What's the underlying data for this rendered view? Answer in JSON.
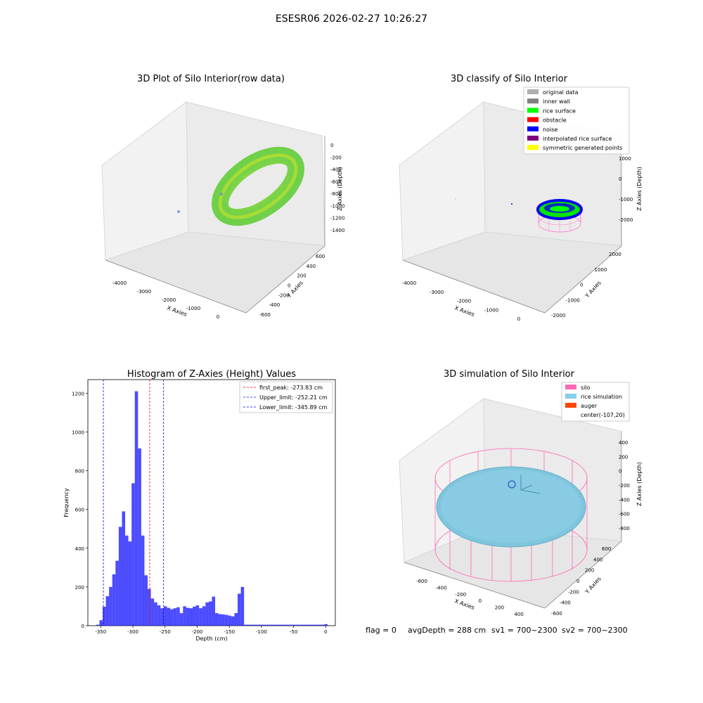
{
  "figure": {
    "suptitle": "ESESR06 2026-02-27 10:26:27",
    "status": {
      "flag": "flag = 0",
      "avg_depth": "avgDepth = 288 cm",
      "sv1": "sv1 = 700~2300",
      "sv2": "sv2 = 700~2300"
    }
  },
  "panels": {
    "p1": {
      "title": "3D Plot of Silo Interior(row data)",
      "xlabel": "X Axies",
      "ylabel": "Y Axies",
      "zlabel": "Z Axies (Depth)",
      "xticks": [
        "-4000",
        "-3000",
        "-2000",
        "-1000",
        "0"
      ],
      "yticks": [
        "-600",
        "-400",
        "-200",
        "0",
        "200",
        "400",
        "600"
      ],
      "zticks": [
        "0",
        "-200",
        "-400",
        "-600",
        "-800",
        "-1000",
        "-1200",
        "-1400"
      ]
    },
    "p2": {
      "title": "3D classify of Silo Interior",
      "xlabel": "X Axies",
      "ylabel": "Y Axies",
      "zlabel": "Z Axies (Depth)",
      "xticks": [
        "-4000",
        "-3000",
        "-2000",
        "-1000",
        "0"
      ],
      "yticks": [
        "-2000",
        "-1000",
        "0",
        "1000",
        "2000"
      ],
      "zticks": [
        "1000",
        "0",
        "-1000",
        "-2000"
      ],
      "legend": [
        {
          "label": "original data",
          "color": "#b0b0b0"
        },
        {
          "label": "inner wall",
          "color": "#808080"
        },
        {
          "label": "rice surface",
          "color": "#00ff00"
        },
        {
          "label": "obstacle",
          "color": "#ff0000"
        },
        {
          "label": "noise",
          "color": "#0000ff"
        },
        {
          "label": "interpolated rice surface",
          "color": "#800080"
        },
        {
          "label": "symmetric generated points",
          "color": "#ffff00"
        }
      ]
    },
    "p3": {
      "title": "Histogram of Z-Axies (Height) Values",
      "legend": [
        {
          "label": "first_peak: -273.83 cm",
          "color": "#ff0000"
        },
        {
          "label": "Upper_limit: -252.21 cm",
          "color": "#0000ff"
        },
        {
          "label": "Lower_limit: -345.89 cm",
          "color": "#0000ff"
        }
      ]
    },
    "p4": {
      "title": "3D simulation of Silo Interior",
      "xlabel": "X Axies",
      "ylabel": "Y Axies",
      "zlabel": "Z Axies (Depth)",
      "xticks": [
        "-600",
        "-400",
        "-200",
        "0",
        "200",
        "400"
      ],
      "yticks": [
        "-600",
        "-400",
        "-200",
        "0",
        "200",
        "400",
        "600"
      ],
      "zticks": [
        "400",
        "200",
        "0",
        "-200",
        "-400",
        "-600",
        "-800"
      ],
      "legend": [
        {
          "label": "silo",
          "color": "#ff69b4"
        },
        {
          "label": "rice simulation",
          "color": "#87ceeb"
        },
        {
          "label": "auger",
          "color": "#ff4500"
        },
        {
          "label": "center(-107,20)",
          "color": ""
        }
      ]
    }
  },
  "chart_data": {
    "type": "bar",
    "title": "Histogram of Z-Axies (Height) Values",
    "xlabel": "Depth (cm)",
    "ylabel": "Frequency",
    "xlim": [
      -370,
      15
    ],
    "ylim": [
      0,
      1270
    ],
    "xticks": [
      -350,
      -300,
      -250,
      -200,
      -150,
      -100,
      -50,
      0
    ],
    "yticks": [
      0,
      200,
      400,
      600,
      800,
      1000,
      1200
    ],
    "bin_width": 5,
    "bin_starts": [
      -357,
      -352,
      -347,
      -342,
      -337,
      -332,
      -327,
      -322,
      -317,
      -312,
      -307,
      -302,
      -297,
      -292,
      -287,
      -282,
      -277,
      -272,
      -267,
      -262,
      -257,
      -252,
      -247,
      -242,
      -237,
      -232,
      -227,
      -222,
      -217,
      -212,
      -207,
      -202,
      -197,
      -192,
      -187,
      -182,
      -177,
      -172,
      -167,
      -162,
      -157,
      -152,
      -147,
      -142,
      -137,
      -132,
      -127,
      -122,
      -117,
      -112,
      -107,
      -102,
      -97,
      -92,
      -87,
      -82,
      -77,
      -72,
      -67,
      -62,
      -57,
      -52,
      -47,
      -42,
      -37,
      -32,
      -27,
      -22,
      -17,
      -12,
      -7,
      -2
    ],
    "values": [
      5,
      28,
      98,
      152,
      200,
      265,
      335,
      510,
      590,
      465,
      435,
      735,
      1210,
      915,
      465,
      260,
      190,
      140,
      120,
      105,
      90,
      100,
      92,
      85,
      90,
      95,
      65,
      100,
      92,
      90,
      98,
      105,
      90,
      100,
      120,
      125,
      150,
      65,
      60,
      58,
      56,
      52,
      48,
      65,
      165,
      200,
      5,
      5,
      5,
      5,
      5,
      5,
      5,
      5,
      5,
      5,
      5,
      5,
      5,
      5,
      5,
      5,
      5,
      5,
      5,
      5,
      5,
      5,
      5,
      5,
      5,
      8
    ],
    "vlines": [
      {
        "label": "first_peak: -273.83 cm",
        "x": -273.83,
        "color": "#ff0000",
        "style": "dashed"
      },
      {
        "label": "Upper_limit: -252.21 cm",
        "x": -252.21,
        "color": "#0000ff",
        "style": "dashed"
      },
      {
        "label": "Lower_limit: -345.89 cm",
        "x": -345.89,
        "color": "#0000ff",
        "style": "dashed"
      }
    ],
    "bar_color": "#0000ff",
    "legend_position": "top-right"
  }
}
